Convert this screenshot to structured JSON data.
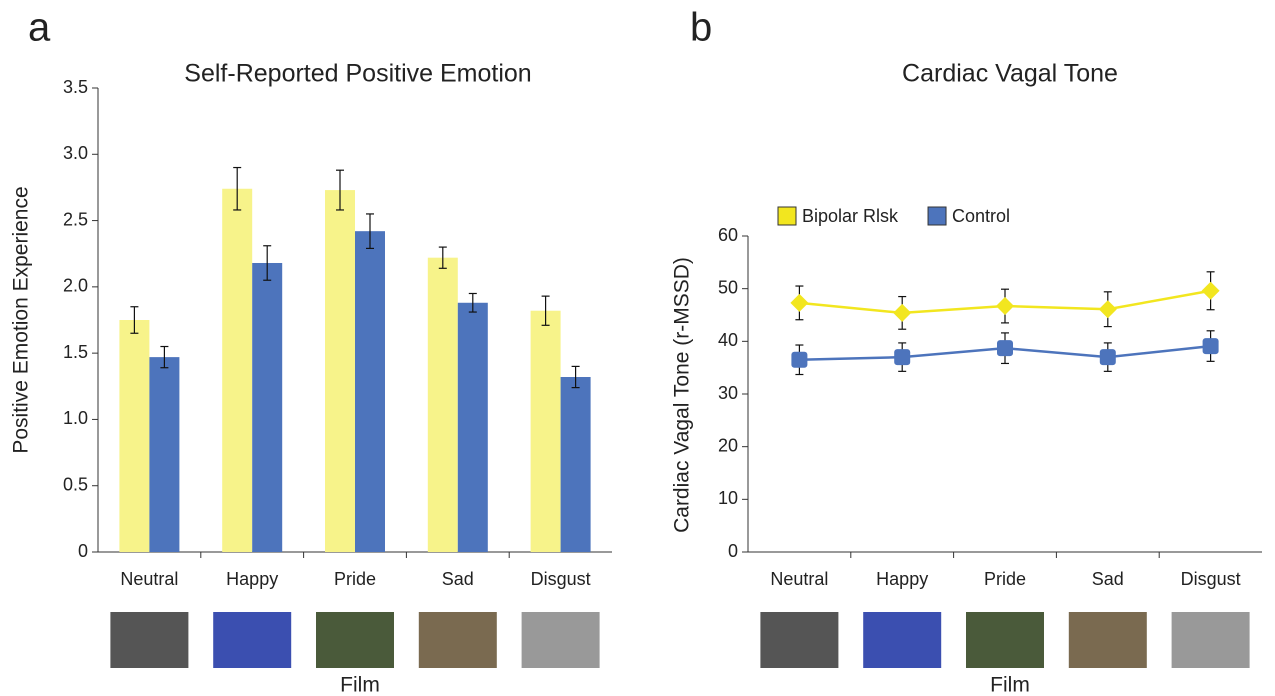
{
  "chart_data": [
    {
      "type": "bar",
      "panel": "a",
      "title": "Self-Reported Positive Emotion",
      "y_label": "Positive Emotion Experience",
      "x_label": "Film",
      "categories": [
        "Neutral",
        "Happy",
        "Pride",
        "Sad",
        "Disgust"
      ],
      "series": [
        {
          "name": "Bipolar Rlsk",
          "color": "#f7f38a",
          "values": [
            1.75,
            2.74,
            2.73,
            2.22,
            1.82
          ],
          "errors": [
            0.1,
            0.16,
            0.15,
            0.08,
            0.11
          ]
        },
        {
          "name": "Control",
          "color": "#4d74bc",
          "values": [
            1.47,
            2.18,
            2.42,
            1.88,
            1.32
          ],
          "errors": [
            0.08,
            0.13,
            0.13,
            0.07,
            0.08
          ]
        }
      ],
      "ylim": [
        0,
        3.5
      ],
      "yticks": [
        0,
        0.5,
        {
          "value": 1,
          "label": "1.0"
        },
        1.5,
        {
          "value": 2,
          "label": "2.0"
        },
        2.5,
        {
          "value": 3,
          "label": "3.0"
        },
        3.5
      ]
    },
    {
      "type": "line",
      "panel": "b",
      "title": "Cardiac Vagal Tone",
      "y_label": "Cardiac Vagal Tone (r-MSSD)",
      "x_label": "Film",
      "categories": [
        "Neutral",
        "Happy",
        "Pride",
        "Sad",
        "Disgust"
      ],
      "series": [
        {
          "name": "Bipolar Rlsk",
          "color": "#f2e61f",
          "values": [
            47.3,
            45.4,
            46.7,
            46.1,
            49.6
          ],
          "errors": [
            3.2,
            3.1,
            3.2,
            3.3,
            3.6
          ]
        },
        {
          "name": "Control",
          "color": "#4d74bc",
          "values": [
            36.5,
            37.0,
            38.7,
            37.0,
            39.1
          ],
          "errors": [
            2.8,
            2.7,
            2.9,
            2.7,
            2.9
          ]
        }
      ],
      "ylim": [
        0,
        60
      ],
      "yticks": [
        0,
        10,
        20,
        30,
        40,
        50,
        60
      ],
      "legend": "upper left"
    }
  ]
}
